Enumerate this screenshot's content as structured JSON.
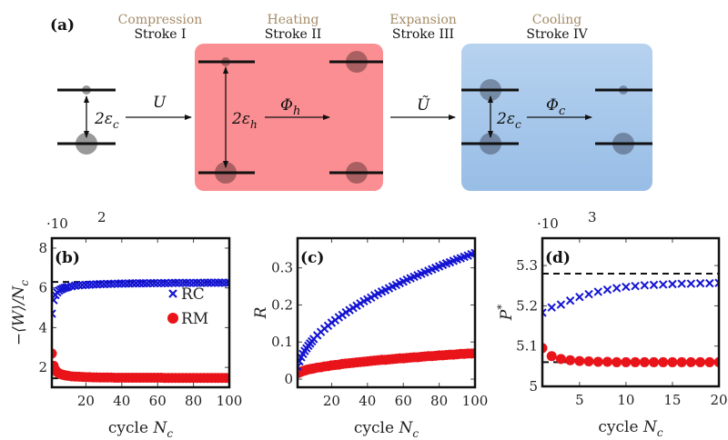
{
  "diagram": {
    "panel_label": "(a)",
    "strokes": [
      {
        "stage": "Compression",
        "name": "Stroke I"
      },
      {
        "stage": "Heating",
        "name": "Stroke II"
      },
      {
        "stage": "Expansion",
        "name": "Stroke III"
      },
      {
        "stage": "Cooling",
        "name": "Stroke IV"
      }
    ],
    "math": {
      "gap_c": {
        "main": "2ε",
        "sub": "c"
      },
      "gap_h": {
        "main": "2ε",
        "sub": "h"
      },
      "gap_c2": {
        "main": "2ε",
        "sub": "c"
      },
      "U": "U",
      "U_tilde": "Ũ",
      "phi_h": {
        "main": "Φ",
        "sub": "h"
      },
      "phi_c": {
        "main": "Φ",
        "sub": "c"
      }
    },
    "colors": {
      "hot_bath": "#fb8e92",
      "cold_bath": "#a6c6ea",
      "stage_text": "#a48c68"
    }
  },
  "chart_data": [
    {
      "type": "scatter",
      "panel_label": "(b)",
      "ylabel": {
        "main": "−⟨W⟩/N",
        "sub": "c"
      },
      "xlabel": {
        "main": "cycle ",
        "var": "N",
        "sub": "c"
      },
      "scale_note": {
        "base": "·10",
        "exp": "2"
      },
      "xlim": [
        1,
        100
      ],
      "ylim": [
        1,
        8.5
      ],
      "xticks": [
        20,
        40,
        60,
        80,
        100
      ],
      "yticks": [
        2,
        4,
        6,
        8
      ],
      "legend": {
        "placement": "center-right",
        "entries": [
          "RC",
          "RM"
        ]
      },
      "reference_lines": [
        6.3,
        1.45
      ],
      "x": [
        1,
        2,
        3,
        4,
        5,
        6,
        7,
        8,
        9,
        10,
        12,
        14,
        16,
        18,
        20,
        22,
        24,
        26,
        28,
        30,
        32,
        34,
        36,
        38,
        40,
        42,
        44,
        46,
        48,
        50,
        52,
        54,
        56,
        58,
        60,
        62,
        64,
        66,
        68,
        70,
        72,
        74,
        76,
        78,
        80,
        82,
        84,
        86,
        88,
        90,
        92,
        94,
        96,
        98,
        100
      ],
      "series": [
        {
          "name": "RC",
          "marker": "cross",
          "color": "#1414d2",
          "values": [
            4.7,
            5.38,
            5.64,
            5.77,
            5.86,
            5.92,
            5.96,
            6.0,
            6.02,
            6.05,
            6.08,
            6.11,
            6.13,
            6.14,
            6.15,
            6.16,
            6.17,
            6.18,
            6.19,
            6.19,
            6.2,
            6.2,
            6.21,
            6.21,
            6.22,
            6.22,
            6.22,
            6.23,
            6.23,
            6.23,
            6.23,
            6.23,
            6.24,
            6.24,
            6.24,
            6.24,
            6.24,
            6.24,
            6.25,
            6.25,
            6.25,
            6.25,
            6.25,
            6.25,
            6.25,
            6.25,
            6.25,
            6.26,
            6.26,
            6.26,
            6.26,
            6.26,
            6.26,
            6.26,
            6.26
          ]
        },
        {
          "name": "RM",
          "marker": "circle",
          "color": "#e8141a",
          "values": [
            2.7,
            2.08,
            1.87,
            1.76,
            1.7,
            1.66,
            1.63,
            1.61,
            1.59,
            1.58,
            1.55,
            1.54,
            1.53,
            1.52,
            1.51,
            1.51,
            1.5,
            1.5,
            1.49,
            1.49,
            1.49,
            1.49,
            1.48,
            1.48,
            1.48,
            1.48,
            1.48,
            1.48,
            1.48,
            1.48,
            1.48,
            1.48,
            1.48,
            1.48,
            1.48,
            1.48,
            1.47,
            1.47,
            1.47,
            1.47,
            1.47,
            1.47,
            1.47,
            1.47,
            1.47,
            1.47,
            1.47,
            1.47,
            1.47,
            1.47,
            1.47,
            1.47,
            1.47,
            1.47,
            1.46
          ]
        }
      ]
    },
    {
      "type": "scatter",
      "panel_label": "(c)",
      "ylabel": {
        "main": "R",
        "sub": ""
      },
      "xlabel": {
        "main": "cycle ",
        "var": "N",
        "sub": "c"
      },
      "xlim": [
        1,
        100
      ],
      "ylim": [
        -0.022,
        0.38
      ],
      "xticks": [
        20,
        40,
        60,
        80,
        100
      ],
      "yticks": [
        0,
        0.1,
        0.2,
        0.3
      ],
      "ytick_labels": [
        "0",
        "0.1",
        "0.2",
        "0.3"
      ],
      "reference_lines": [],
      "x": [
        1,
        2,
        3,
        4,
        5,
        6,
        7,
        8,
        9,
        10,
        12,
        14,
        16,
        18,
        20,
        22,
        24,
        26,
        28,
        30,
        32,
        34,
        36,
        38,
        40,
        42,
        44,
        46,
        48,
        50,
        52,
        54,
        56,
        58,
        60,
        62,
        64,
        66,
        68,
        70,
        72,
        74,
        76,
        78,
        80,
        82,
        84,
        86,
        88,
        90,
        92,
        94,
        96,
        98,
        100
      ],
      "series": [
        {
          "name": "RC",
          "marker": "cross",
          "color": "#1414d2",
          "values": [
            0.034,
            0.048,
            0.059,
            0.068,
            0.076,
            0.083,
            0.09,
            0.096,
            0.102,
            0.108,
            0.118,
            0.127,
            0.136,
            0.144,
            0.152,
            0.159,
            0.167,
            0.173,
            0.18,
            0.186,
            0.192,
            0.198,
            0.204,
            0.21,
            0.215,
            0.22,
            0.226,
            0.231,
            0.236,
            0.24,
            0.245,
            0.25,
            0.254,
            0.259,
            0.263,
            0.268,
            0.272,
            0.276,
            0.28,
            0.284,
            0.288,
            0.292,
            0.296,
            0.3,
            0.304,
            0.308,
            0.312,
            0.315,
            0.319,
            0.323,
            0.326,
            0.33,
            0.333,
            0.337,
            0.34
          ]
        },
        {
          "name": "RM",
          "marker": "circle",
          "color": "#e8141a",
          "values": [
            0.016,
            0.018,
            0.02,
            0.022,
            0.023,
            0.025,
            0.026,
            0.027,
            0.028,
            0.029,
            0.031,
            0.032,
            0.034,
            0.035,
            0.037,
            0.038,
            0.039,
            0.041,
            0.042,
            0.043,
            0.044,
            0.045,
            0.046,
            0.047,
            0.048,
            0.049,
            0.05,
            0.051,
            0.052,
            0.052,
            0.053,
            0.054,
            0.055,
            0.056,
            0.056,
            0.057,
            0.058,
            0.059,
            0.059,
            0.06,
            0.061,
            0.062,
            0.062,
            0.063,
            0.064,
            0.064,
            0.065,
            0.066,
            0.066,
            0.067,
            0.068,
            0.068,
            0.069,
            0.069,
            0.07
          ]
        }
      ]
    },
    {
      "type": "scatter",
      "panel_label": "(d)",
      "ylabel": {
        "main": "P",
        "sub": "",
        "sup": "*"
      },
      "xlabel": {
        "main": "cycle ",
        "var": "N",
        "sub": "c"
      },
      "scale_note": {
        "base": "·10",
        "exp": "3"
      },
      "xlim": [
        1,
        20
      ],
      "ylim": [
        5.0,
        5.368
      ],
      "xticks": [
        5,
        10,
        15,
        20
      ],
      "yticks": [
        5.0,
        5.1,
        5.2,
        5.3
      ],
      "ytick_labels": [
        "5",
        "5.1",
        "5.2",
        "5.3"
      ],
      "reference_lines": [
        5.28,
        5.06
      ],
      "x": [
        1,
        2,
        3,
        4,
        5,
        6,
        7,
        8,
        9,
        10,
        11,
        12,
        13,
        14,
        15,
        16,
        17,
        18,
        19,
        20
      ],
      "series": [
        {
          "name": "RC",
          "marker": "cross",
          "color": "#1414d2",
          "values": [
            5.183,
            5.196,
            5.203,
            5.213,
            5.222,
            5.229,
            5.235,
            5.24,
            5.244,
            5.247,
            5.249,
            5.251,
            5.252,
            5.253,
            5.254,
            5.255,
            5.255,
            5.256,
            5.256,
            5.257
          ]
        },
        {
          "name": "RM",
          "marker": "circle",
          "color": "#e8141a",
          "values": [
            5.095,
            5.075,
            5.068,
            5.065,
            5.063,
            5.062,
            5.061,
            5.061,
            5.06,
            5.06,
            5.06,
            5.06,
            5.06,
            5.06,
            5.06,
            5.06,
            5.06,
            5.06,
            5.06,
            5.06
          ]
        }
      ]
    }
  ]
}
